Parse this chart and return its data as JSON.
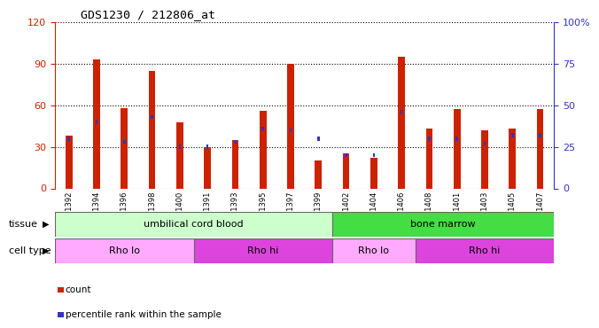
{
  "title": "GDS1230 / 212806_at",
  "samples": [
    "GSM51392",
    "GSM51394",
    "GSM51396",
    "GSM51398",
    "GSM51400",
    "GSM51391",
    "GSM51393",
    "GSM51395",
    "GSM51397",
    "GSM51399",
    "GSM51402",
    "GSM51404",
    "GSM51406",
    "GSM51408",
    "GSM51401",
    "GSM51403",
    "GSM51405",
    "GSM51407"
  ],
  "counts": [
    38,
    93,
    58,
    85,
    48,
    30,
    35,
    56,
    90,
    20,
    25,
    22,
    95,
    43,
    57,
    42,
    43,
    57
  ],
  "percentiles": [
    30,
    40,
    28,
    43,
    25,
    25,
    28,
    36,
    35,
    30,
    20,
    20,
    46,
    30,
    30,
    27,
    32,
    32
  ],
  "ylim_left": [
    0,
    120
  ],
  "ylim_right": [
    0,
    100
  ],
  "yticks_left": [
    0,
    30,
    60,
    90,
    120
  ],
  "yticks_right": [
    0,
    25,
    50,
    75,
    100
  ],
  "ytick_labels_right": [
    "0",
    "25",
    "50",
    "75",
    "100%"
  ],
  "bar_color": "#cc2200",
  "percentile_color": "#3333bb",
  "tissue_groups": [
    {
      "label": "umbilical cord blood",
      "start": 0,
      "end": 10,
      "color": "#ccffcc"
    },
    {
      "label": "bone marrow",
      "start": 10,
      "end": 18,
      "color": "#44dd44"
    }
  ],
  "cell_type_groups": [
    {
      "label": "Rho lo",
      "start": 0,
      "end": 5,
      "color": "#ffaaff"
    },
    {
      "label": "Rho hi",
      "start": 5,
      "end": 10,
      "color": "#dd44dd"
    },
    {
      "label": "Rho lo",
      "start": 10,
      "end": 13,
      "color": "#ffaaff"
    },
    {
      "label": "Rho hi",
      "start": 13,
      "end": 18,
      "color": "#dd44dd"
    }
  ],
  "legend_items": [
    {
      "label": "count",
      "color": "#cc2200"
    },
    {
      "label": "percentile rank within the sample",
      "color": "#3333bb"
    }
  ],
  "left_axis_color": "#cc2200",
  "right_axis_color": "#3333bb"
}
